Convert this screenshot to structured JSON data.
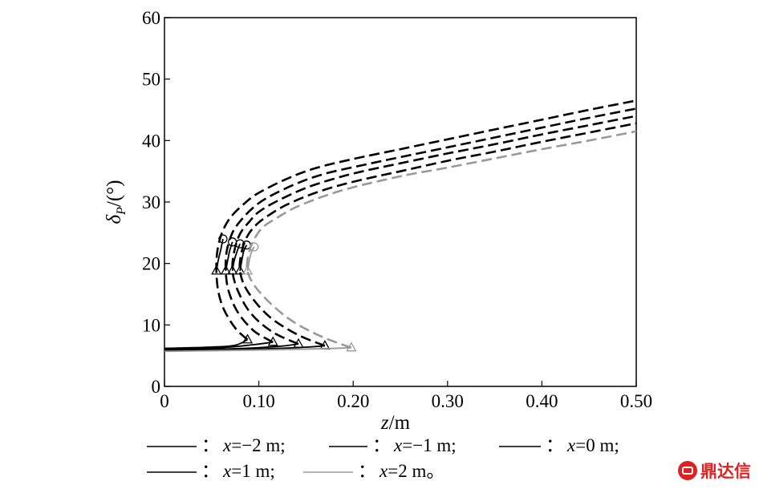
{
  "chart_data": {
    "type": "line",
    "title": "",
    "xlabel_var": "z",
    "xlabel_unit": "/m",
    "ylabel_var": "δ",
    "ylabel_sub": "P",
    "ylabel_unit": "/(°)",
    "xlim": [
      0,
      0.5
    ],
    "ylim": [
      0,
      60
    ],
    "xticks": [
      "0",
      "0.10",
      "0.20",
      "0.30",
      "0.40",
      "0.50"
    ],
    "yticks": [
      "0",
      "10",
      "20",
      "30",
      "40",
      "50",
      "60"
    ],
    "grid": false,
    "legend_placement": "bottom",
    "series": [
      {
        "label_eq": "x=−2 m;",
        "color": "#000000",
        "solid_low": [
          [
            0.0,
            6.2
          ],
          [
            0.05,
            6.4
          ],
          [
            0.075,
            6.7
          ],
          [
            0.088,
            7.6
          ]
        ],
        "solid_upper": [
          [
            0.055,
            18.8
          ],
          [
            0.057,
            20.5
          ],
          [
            0.06,
            22.5
          ],
          [
            0.062,
            24.0
          ]
        ],
        "dashed": [
          [
            0.088,
            7.6
          ],
          [
            0.075,
            9.5
          ],
          [
            0.063,
            12.5
          ],
          [
            0.057,
            15.5
          ],
          [
            0.055,
            18.8
          ],
          [
            0.056,
            22.0
          ],
          [
            0.061,
            25.0
          ],
          [
            0.07,
            27.5
          ],
          [
            0.085,
            29.8
          ],
          [
            0.1,
            31.5
          ],
          [
            0.13,
            33.8
          ],
          [
            0.16,
            35.5
          ],
          [
            0.2,
            37.0
          ],
          [
            0.25,
            38.6
          ],
          [
            0.3,
            40.2
          ],
          [
            0.35,
            41.8
          ],
          [
            0.4,
            43.4
          ],
          [
            0.45,
            45.0
          ],
          [
            0.5,
            46.5
          ]
        ],
        "triangles": [
          [
            0.055,
            18.8
          ],
          [
            0.088,
            7.6
          ]
        ],
        "circles": [
          [
            0.062,
            24.0
          ]
        ]
      },
      {
        "label_eq": "x=−1 m;",
        "color": "#000000",
        "solid_low": [
          [
            0.0,
            6.0
          ],
          [
            0.06,
            6.3
          ],
          [
            0.095,
            6.8
          ],
          [
            0.115,
            7.2
          ]
        ],
        "solid_upper": [
          [
            0.065,
            18.8
          ],
          [
            0.067,
            20.5
          ],
          [
            0.069,
            22.0
          ],
          [
            0.072,
            23.5
          ]
        ],
        "dashed": [
          [
            0.115,
            7.2
          ],
          [
            0.095,
            9.0
          ],
          [
            0.078,
            12.0
          ],
          [
            0.068,
            15.5
          ],
          [
            0.065,
            18.8
          ],
          [
            0.066,
            22.0
          ],
          [
            0.072,
            25.0
          ],
          [
            0.082,
            27.2
          ],
          [
            0.095,
            29.2
          ],
          [
            0.11,
            30.8
          ],
          [
            0.14,
            33.0
          ],
          [
            0.17,
            34.6
          ],
          [
            0.21,
            36.0
          ],
          [
            0.25,
            37.3
          ],
          [
            0.3,
            38.9
          ],
          [
            0.35,
            40.5
          ],
          [
            0.4,
            42.1
          ],
          [
            0.45,
            43.7
          ],
          [
            0.5,
            45.2
          ]
        ],
        "triangles": [
          [
            0.065,
            18.8
          ],
          [
            0.115,
            7.2
          ]
        ],
        "circles": [
          [
            0.072,
            23.5
          ]
        ]
      },
      {
        "label_eq": "x=0 m;",
        "color": "#000000",
        "solid_low": [
          [
            0.0,
            5.9
          ],
          [
            0.07,
            6.1
          ],
          [
            0.12,
            6.5
          ],
          [
            0.142,
            6.9
          ]
        ],
        "solid_upper": [
          [
            0.072,
            18.8
          ],
          [
            0.074,
            20.5
          ],
          [
            0.077,
            22.0
          ],
          [
            0.08,
            23.2
          ]
        ],
        "dashed": [
          [
            0.142,
            6.9
          ],
          [
            0.115,
            8.8
          ],
          [
            0.092,
            11.8
          ],
          [
            0.078,
            15.5
          ],
          [
            0.072,
            18.8
          ],
          [
            0.074,
            22.0
          ],
          [
            0.08,
            24.8
          ],
          [
            0.09,
            26.8
          ],
          [
            0.1,
            28.4
          ],
          [
            0.12,
            30.2
          ],
          [
            0.15,
            32.3
          ],
          [
            0.18,
            33.8
          ],
          [
            0.21,
            35.0
          ],
          [
            0.25,
            36.3
          ],
          [
            0.3,
            37.9
          ],
          [
            0.35,
            39.4
          ],
          [
            0.4,
            41.0
          ],
          [
            0.45,
            42.5
          ],
          [
            0.5,
            44.0
          ]
        ],
        "triangles": [
          [
            0.072,
            18.8
          ],
          [
            0.142,
            6.9
          ]
        ],
        "circles": [
          [
            0.08,
            23.2
          ]
        ]
      },
      {
        "label_eq": "x=1 m;",
        "color": "#000000",
        "solid_low": [
          [
            0.0,
            5.8
          ],
          [
            0.08,
            6.0
          ],
          [
            0.14,
            6.3
          ],
          [
            0.17,
            6.6
          ]
        ],
        "solid_upper": [
          [
            0.08,
            18.8
          ],
          [
            0.082,
            20.5
          ],
          [
            0.084,
            22.0
          ],
          [
            0.087,
            23.0
          ]
        ],
        "dashed": [
          [
            0.17,
            6.6
          ],
          [
            0.14,
            8.5
          ],
          [
            0.11,
            11.5
          ],
          [
            0.088,
            15.5
          ],
          [
            0.08,
            18.8
          ],
          [
            0.082,
            22.0
          ],
          [
            0.088,
            24.5
          ],
          [
            0.098,
            26.4
          ],
          [
            0.11,
            27.8
          ],
          [
            0.13,
            29.6
          ],
          [
            0.16,
            31.5
          ],
          [
            0.19,
            32.9
          ],
          [
            0.22,
            34.0
          ],
          [
            0.25,
            35.0
          ],
          [
            0.3,
            36.7
          ],
          [
            0.35,
            38.2
          ],
          [
            0.4,
            39.8
          ],
          [
            0.45,
            41.3
          ],
          [
            0.5,
            42.8
          ]
        ],
        "triangles": [
          [
            0.08,
            18.8
          ],
          [
            0.17,
            6.6
          ]
        ],
        "circles": [
          [
            0.087,
            23.0
          ]
        ]
      },
      {
        "label_eq": "x=2 m。",
        "color": "#999999",
        "solid_low": [
          [
            0.0,
            5.7
          ],
          [
            0.09,
            5.9
          ],
          [
            0.16,
            6.1
          ],
          [
            0.198,
            6.3
          ]
        ],
        "solid_upper": [
          [
            0.088,
            18.8
          ],
          [
            0.09,
            20.5
          ],
          [
            0.092,
            21.8
          ],
          [
            0.095,
            22.7
          ]
        ],
        "dashed": [
          [
            0.198,
            6.3
          ],
          [
            0.165,
            8.2
          ],
          [
            0.13,
            11.2
          ],
          [
            0.1,
            15.5
          ],
          [
            0.088,
            18.8
          ],
          [
            0.09,
            22.0
          ],
          [
            0.096,
            24.2
          ],
          [
            0.105,
            26.0
          ],
          [
            0.12,
            27.5
          ],
          [
            0.14,
            29.2
          ],
          [
            0.17,
            31.0
          ],
          [
            0.2,
            32.4
          ],
          [
            0.23,
            33.5
          ],
          [
            0.26,
            34.5
          ],
          [
            0.3,
            35.6
          ],
          [
            0.35,
            37.1
          ],
          [
            0.4,
            38.6
          ],
          [
            0.45,
            40.0
          ],
          [
            0.5,
            41.5
          ]
        ],
        "triangles": [
          [
            0.088,
            18.8
          ],
          [
            0.198,
            6.3
          ]
        ],
        "circles": [
          [
            0.095,
            22.7
          ]
        ]
      }
    ]
  }
}
